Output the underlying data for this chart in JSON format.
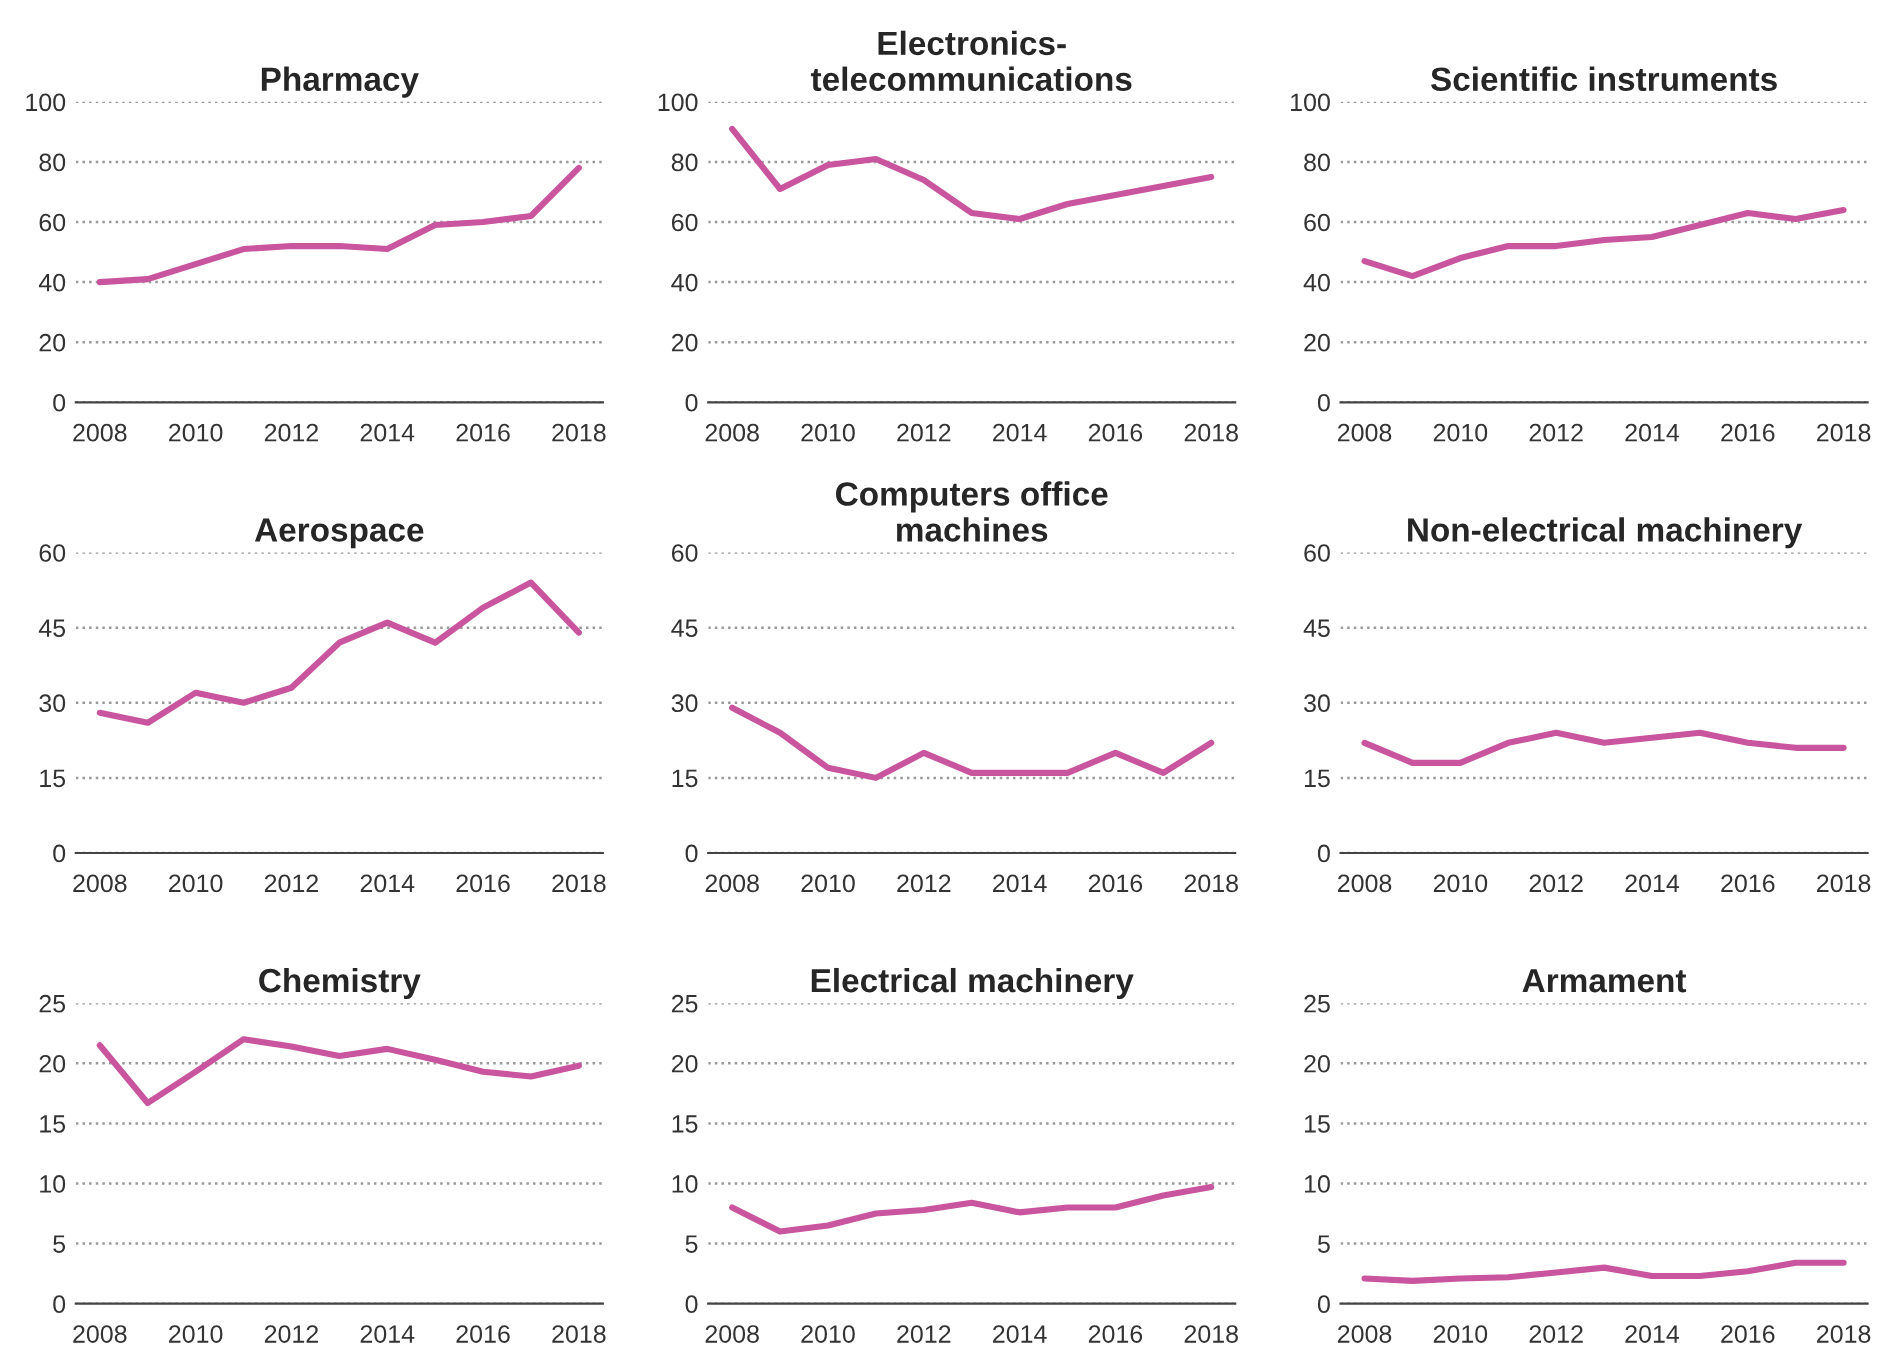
{
  "chart_data": [
    {
      "type": "line",
      "title": "Pharmacy",
      "x": [
        2008,
        2009,
        2010,
        2011,
        2012,
        2013,
        2014,
        2015,
        2016,
        2017,
        2018
      ],
      "series": [
        {
          "color": "#c8559e",
          "values": [
            40,
            41,
            46,
            51,
            52,
            52,
            51,
            59,
            60,
            62,
            78
          ]
        }
      ],
      "xlim": [
        2007.5,
        2018.5
      ],
      "xticks": [
        2008,
        2010,
        2012,
        2014,
        2016,
        2018
      ],
      "ylim": [
        0,
        100
      ],
      "yticks": [
        0,
        20,
        40,
        60,
        80,
        100
      ],
      "grid": "y",
      "marker": "none",
      "line_style": "solid",
      "legend": false
    },
    {
      "type": "line",
      "title": "Electronics-\ntelecommunications",
      "x": [
        2008,
        2009,
        2010,
        2011,
        2012,
        2013,
        2014,
        2015,
        2016,
        2017,
        2018
      ],
      "series": [
        {
          "color": "#c8559e",
          "values": [
            91,
            71,
            79,
            81,
            74,
            63,
            61,
            66,
            69,
            72,
            75
          ]
        }
      ],
      "xlim": [
        2007.5,
        2018.5
      ],
      "xticks": [
        2008,
        2010,
        2012,
        2014,
        2016,
        2018
      ],
      "ylim": [
        0,
        100
      ],
      "yticks": [
        0,
        20,
        40,
        60,
        80,
        100
      ],
      "grid": "y",
      "marker": "none",
      "line_style": "solid",
      "legend": false
    },
    {
      "type": "line",
      "title": "Scientific instruments",
      "x": [
        2008,
        2009,
        2010,
        2011,
        2012,
        2013,
        2014,
        2015,
        2016,
        2017,
        2018
      ],
      "series": [
        {
          "color": "#c8559e",
          "values": [
            47,
            42,
            48,
            52,
            52,
            54,
            55,
            59,
            63,
            61,
            64
          ]
        }
      ],
      "xlim": [
        2007.5,
        2018.5
      ],
      "xticks": [
        2008,
        2010,
        2012,
        2014,
        2016,
        2018
      ],
      "ylim": [
        0,
        100
      ],
      "yticks": [
        0,
        20,
        40,
        60,
        80,
        100
      ],
      "grid": "y",
      "marker": "none",
      "line_style": "solid",
      "legend": false
    },
    {
      "type": "line",
      "title": "Aerospace",
      "x": [
        2008,
        2009,
        2010,
        2011,
        2012,
        2013,
        2014,
        2015,
        2016,
        2017,
        2018
      ],
      "series": [
        {
          "color": "#c8559e",
          "values": [
            28,
            26,
            32,
            30,
            33,
            42,
            46,
            42,
            49,
            54,
            44
          ]
        }
      ],
      "xlim": [
        2007.5,
        2018.5
      ],
      "xticks": [
        2008,
        2010,
        2012,
        2014,
        2016,
        2018
      ],
      "ylim": [
        0,
        60
      ],
      "yticks": [
        0,
        15,
        30,
        45,
        60
      ],
      "grid": "y",
      "marker": "none",
      "line_style": "solid",
      "legend": false
    },
    {
      "type": "line",
      "title": "Computers office\nmachines",
      "x": [
        2008,
        2009,
        2010,
        2011,
        2012,
        2013,
        2014,
        2015,
        2016,
        2017,
        2018
      ],
      "series": [
        {
          "color": "#c8559e",
          "values": [
            29,
            24,
            17,
            15,
            20,
            16,
            16,
            16,
            20,
            16,
            22
          ]
        }
      ],
      "xlim": [
        2007.5,
        2018.5
      ],
      "xticks": [
        2008,
        2010,
        2012,
        2014,
        2016,
        2018
      ],
      "ylim": [
        0,
        60
      ],
      "yticks": [
        0,
        15,
        30,
        45,
        60
      ],
      "grid": "y",
      "marker": "none",
      "line_style": "solid",
      "legend": false
    },
    {
      "type": "line",
      "title": "Non-electrical machinery",
      "x": [
        2008,
        2009,
        2010,
        2011,
        2012,
        2013,
        2014,
        2015,
        2016,
        2017,
        2018
      ],
      "series": [
        {
          "color": "#c8559e",
          "values": [
            22,
            18,
            18,
            22,
            24,
            22,
            23,
            24,
            22,
            21,
            21
          ]
        }
      ],
      "xlim": [
        2007.5,
        2018.5
      ],
      "xticks": [
        2008,
        2010,
        2012,
        2014,
        2016,
        2018
      ],
      "ylim": [
        0,
        60
      ],
      "yticks": [
        0,
        15,
        30,
        45,
        60
      ],
      "grid": "y",
      "marker": "none",
      "line_style": "solid",
      "legend": false
    },
    {
      "type": "line",
      "title": "Chemistry",
      "x": [
        2008,
        2009,
        2010,
        2011,
        2012,
        2013,
        2014,
        2015,
        2016,
        2017,
        2018
      ],
      "series": [
        {
          "color": "#c8559e",
          "values": [
            21.5,
            16.7,
            19.3,
            22,
            21.4,
            20.6,
            21.2,
            20.3,
            19.3,
            18.9,
            19.8
          ]
        }
      ],
      "xlim": [
        2007.5,
        2018.5
      ],
      "xticks": [
        2008,
        2010,
        2012,
        2014,
        2016,
        2018
      ],
      "ylim": [
        0,
        25
      ],
      "yticks": [
        0,
        5,
        10,
        15,
        20,
        25
      ],
      "grid": "y",
      "marker": "none",
      "line_style": "solid",
      "legend": false
    },
    {
      "type": "line",
      "title": "Electrical machinery",
      "x": [
        2008,
        2009,
        2010,
        2011,
        2012,
        2013,
        2014,
        2015,
        2016,
        2017,
        2018
      ],
      "series": [
        {
          "color": "#c8559e",
          "values": [
            8,
            6,
            6.5,
            7.5,
            7.8,
            8.4,
            7.6,
            8,
            8,
            9,
            9.7
          ]
        }
      ],
      "xlim": [
        2007.5,
        2018.5
      ],
      "xticks": [
        2008,
        2010,
        2012,
        2014,
        2016,
        2018
      ],
      "ylim": [
        0,
        25
      ],
      "yticks": [
        0,
        5,
        10,
        15,
        20,
        25
      ],
      "grid": "y",
      "marker": "none",
      "line_style": "solid",
      "legend": false
    },
    {
      "type": "line",
      "title": "Armament",
      "x": [
        2008,
        2009,
        2010,
        2011,
        2012,
        2013,
        2014,
        2015,
        2016,
        2017,
        2018
      ],
      "series": [
        {
          "color": "#c8559e",
          "values": [
            2.1,
            1.9,
            2.1,
            2.2,
            2.6,
            3,
            2.3,
            2.3,
            2.7,
            3.4,
            3.4
          ]
        }
      ],
      "xlim": [
        2007.5,
        2018.5
      ],
      "xticks": [
        2008,
        2010,
        2012,
        2014,
        2016,
        2018
      ],
      "ylim": [
        0,
        25
      ],
      "yticks": [
        0,
        5,
        10,
        15,
        20,
        25
      ],
      "grid": "y",
      "marker": "none",
      "line_style": "solid",
      "legend": false
    }
  ]
}
